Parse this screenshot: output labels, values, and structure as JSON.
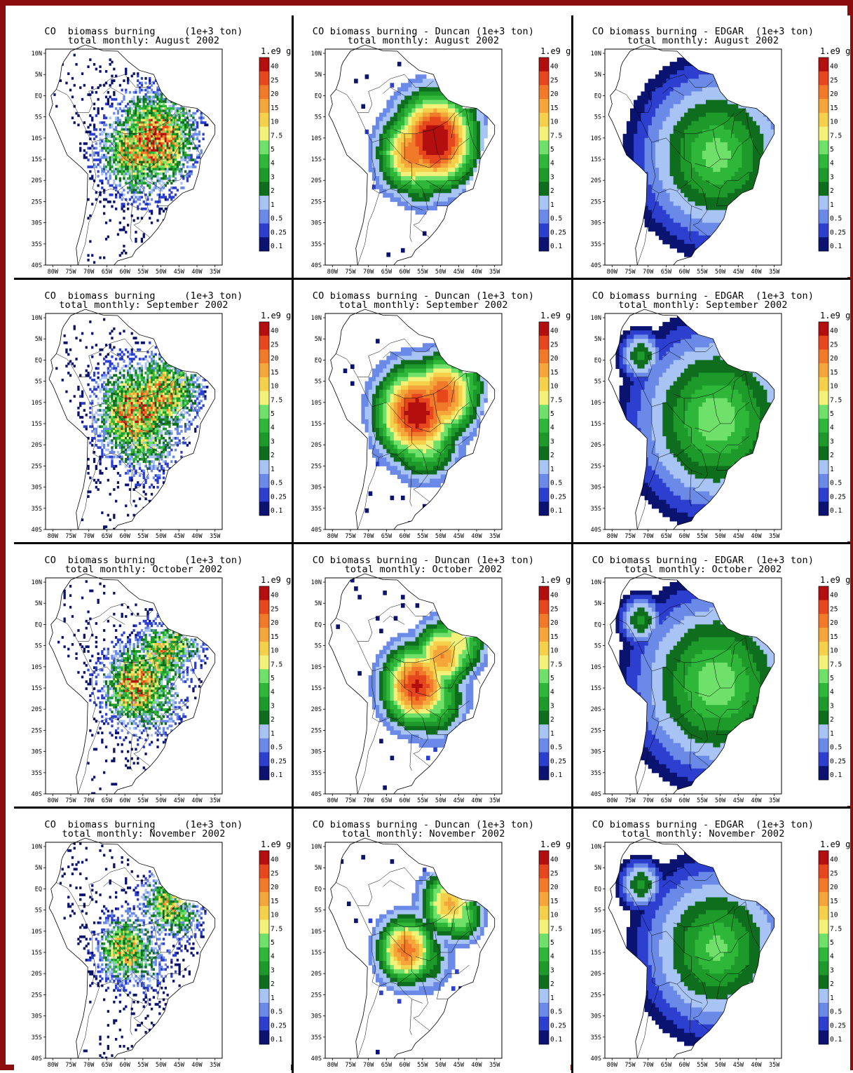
{
  "page": {
    "border_color": "#8b0d0d"
  },
  "colorbar": {
    "unit": "1.e9 g",
    "levels": [
      "40",
      "25",
      "20",
      "15",
      "10",
      "7.5",
      "5",
      "4",
      "3",
      "2",
      "1",
      "0.5",
      "0.25",
      "0.1"
    ],
    "colors": [
      "#b40f0f",
      "#e6471c",
      "#f07a2a",
      "#f4a63a",
      "#f5d04a",
      "#f2f27a",
      "#6fe06a",
      "#2fb73a",
      "#1d9a2a",
      "#0f6e1e",
      "#a8c4f4",
      "#6b8ae8",
      "#2c3fcf",
      "#0a1470"
    ]
  },
  "axes": {
    "lat": [
      "10N",
      "5N",
      "EQ",
      "5S",
      "10S",
      "15S",
      "20S",
      "25S",
      "30S",
      "35S",
      "40S"
    ],
    "lon": [
      "80W",
      "75W",
      "70W",
      "65W",
      "60W",
      "55W",
      "50W",
      "45W",
      "40W",
      "35W"
    ]
  },
  "rows": [
    {
      "month": "August 2002",
      "panels": [
        {
          "dataset": "",
          "line1": "CO  biomass burning     (1e+3 ton)",
          "line2": "total monthly: August 2002"
        },
        {
          "dataset": "Duncan",
          "line1": "CO biomass burning - Duncan (1e+3 ton)",
          "line2": "total monthly: August 2002"
        },
        {
          "dataset": "EDGAR",
          "line1": "CO biomass burning - EDGAR  (1e+3 ton)",
          "line2": "total monthly: August 2002"
        }
      ]
    },
    {
      "month": "September 2002",
      "panels": [
        {
          "dataset": "",
          "line1": "CO  biomass burning     (1e+3 ton)",
          "line2": "total monthly: September 2002"
        },
        {
          "dataset": "Duncan",
          "line1": "CO biomass burning - Duncan (1e+3 ton)",
          "line2": "total monthly: September 2002"
        },
        {
          "dataset": "EDGAR",
          "line1": "CO biomass burning - EDGAR  (1e+3 ton)",
          "line2": "total monthly: September 2002"
        }
      ]
    },
    {
      "month": "October 2002",
      "panels": [
        {
          "dataset": "",
          "line1": "CO  biomass burning     (1e+3 ton)",
          "line2": "total monthly: October 2002"
        },
        {
          "dataset": "Duncan",
          "line1": "CO biomass burning - Duncan (1e+3 ton)",
          "line2": "total monthly: October 2002"
        },
        {
          "dataset": "EDGAR",
          "line1": "CO biomass burning - EDGAR  (1e+3 ton)",
          "line2": "total monthly: October 2002"
        }
      ]
    },
    {
      "month": "November 2002",
      "panels": [
        {
          "dataset": "",
          "line1": "CO  biomass burning     (1e+3 ton)",
          "line2": "total monthly: November 2002"
        },
        {
          "dataset": "Duncan",
          "line1": "CO biomass burning - Duncan (1e+3 ton)",
          "line2": "total monthly: November 2002"
        },
        {
          "dataset": "EDGAR",
          "line1": "CO biomass burning - EDGAR  (1e+3 ton)",
          "line2": "total monthly: November 2002"
        }
      ]
    }
  ]
}
